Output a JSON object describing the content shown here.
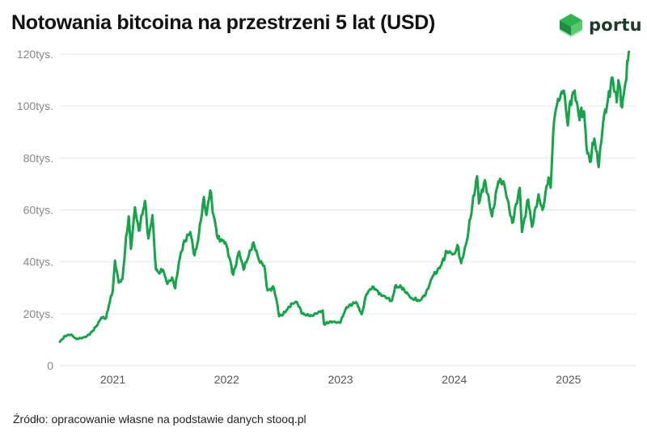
{
  "title": "Notowania bitcoina na przestrzeni 5 lat (USD)",
  "logo": {
    "text": "portu",
    "icon": "portu-logo-icon"
  },
  "source": "Źródło: opracowanie własne na podstawie danych stooq.pl",
  "colors": {
    "line": "#16a34a",
    "grid": "#e6e6e6",
    "brand": "#2fb450"
  },
  "chart_data": {
    "type": "line",
    "title": "Notowania bitcoina na przestrzeni 5 lat (USD)",
    "xlabel": "",
    "ylabel": "",
    "ylim": [
      0,
      120000
    ],
    "xlim": [
      "2020-07-15",
      "2025-07-20"
    ],
    "y_ticks": [
      {
        "value": 0,
        "label": "0"
      },
      {
        "value": 20000,
        "label": "20tys."
      },
      {
        "value": 40000,
        "label": "40tys."
      },
      {
        "value": 60000,
        "label": "60tys."
      },
      {
        "value": 80000,
        "label": "80tys."
      },
      {
        "value": 100000,
        "label": "100tys."
      },
      {
        "value": 120000,
        "label": "120tys."
      }
    ],
    "x_ticks": [
      {
        "value": "2021-01-01",
        "label": "2021"
      },
      {
        "value": "2022-01-01",
        "label": "2022"
      },
      {
        "value": "2023-01-01",
        "label": "2023"
      },
      {
        "value": "2024-01-01",
        "label": "2024"
      },
      {
        "value": "2025-01-01",
        "label": "2025"
      }
    ],
    "grid": "horizontal",
    "series": [
      {
        "color": "#16a34a",
        "points": [
          [
            "2020-07-15",
            9200
          ],
          [
            "2020-08-01",
            11500
          ],
          [
            "2020-08-20",
            12000
          ],
          [
            "2020-09-05",
            10300
          ],
          [
            "2020-09-25",
            10700
          ],
          [
            "2020-10-10",
            11300
          ],
          [
            "2020-10-25",
            13000
          ],
          [
            "2020-11-10",
            15300
          ],
          [
            "2020-11-25",
            18500
          ],
          [
            "2020-12-10",
            18300
          ],
          [
            "2020-12-20",
            23500
          ],
          [
            "2021-01-01",
            29000
          ],
          [
            "2021-01-08",
            40500
          ],
          [
            "2021-01-20",
            32000
          ],
          [
            "2021-02-01",
            33500
          ],
          [
            "2021-02-10",
            46000
          ],
          [
            "2021-02-21",
            57500
          ],
          [
            "2021-02-28",
            45000
          ],
          [
            "2021-03-13",
            61000
          ],
          [
            "2021-03-25",
            52000
          ],
          [
            "2021-04-14",
            63500
          ],
          [
            "2021-04-25",
            49000
          ],
          [
            "2021-05-08",
            58000
          ],
          [
            "2021-05-19",
            37000
          ],
          [
            "2021-05-30",
            35500
          ],
          [
            "2021-06-10",
            37000
          ],
          [
            "2021-06-25",
            31500
          ],
          [
            "2021-07-10",
            34000
          ],
          [
            "2021-07-20",
            29800
          ],
          [
            "2021-08-01",
            40000
          ],
          [
            "2021-08-15",
            47000
          ],
          [
            "2021-09-06",
            51500
          ],
          [
            "2021-09-20",
            42500
          ],
          [
            "2021-10-01",
            48000
          ],
          [
            "2021-10-20",
            65000
          ],
          [
            "2021-10-28",
            58000
          ],
          [
            "2021-11-09",
            67500
          ],
          [
            "2021-11-20",
            58000
          ],
          [
            "2021-12-04",
            49000
          ],
          [
            "2021-12-28",
            47500
          ],
          [
            "2022-01-10",
            41500
          ],
          [
            "2022-01-22",
            35000
          ],
          [
            "2022-02-10",
            44000
          ],
          [
            "2022-02-24",
            37000
          ],
          [
            "2022-03-28",
            47500
          ],
          [
            "2022-04-15",
            40500
          ],
          [
            "2022-05-01",
            38500
          ],
          [
            "2022-05-12",
            29000
          ],
          [
            "2022-06-01",
            30000
          ],
          [
            "2022-06-14",
            22500
          ],
          [
            "2022-06-18",
            19000
          ],
          [
            "2022-07-01",
            19800
          ],
          [
            "2022-07-30",
            24000
          ],
          [
            "2022-08-14",
            24500
          ],
          [
            "2022-09-01",
            20000
          ],
          [
            "2022-09-15",
            19500
          ],
          [
            "2022-10-01",
            19300
          ],
          [
            "2022-11-05",
            21300
          ],
          [
            "2022-11-09",
            16000
          ],
          [
            "2022-12-01",
            17000
          ],
          [
            "2022-12-31",
            16500
          ],
          [
            "2023-01-20",
            22500
          ],
          [
            "2023-02-20",
            24500
          ],
          [
            "2023-03-10",
            19800
          ],
          [
            "2023-03-25",
            27500
          ],
          [
            "2023-04-14",
            30500
          ],
          [
            "2023-05-10",
            27500
          ],
          [
            "2023-06-15",
            25000
          ],
          [
            "2023-06-25",
            30500
          ],
          [
            "2023-07-15",
            30200
          ],
          [
            "2023-08-17",
            26000
          ],
          [
            "2023-09-11",
            25000
          ],
          [
            "2023-10-01",
            27500
          ],
          [
            "2023-10-24",
            34500
          ],
          [
            "2023-11-15",
            37500
          ],
          [
            "2023-12-08",
            44000
          ],
          [
            "2024-01-01",
            43000
          ],
          [
            "2024-01-11",
            46500
          ],
          [
            "2024-01-23",
            39500
          ],
          [
            "2024-02-10",
            48000
          ],
          [
            "2024-02-28",
            62000
          ],
          [
            "2024-03-14",
            73000
          ],
          [
            "2024-03-20",
            62500
          ],
          [
            "2024-04-08",
            71500
          ],
          [
            "2024-05-01",
            57500
          ],
          [
            "2024-05-21",
            71000
          ],
          [
            "2024-06-07",
            71000
          ],
          [
            "2024-07-05",
            55000
          ],
          [
            "2024-07-29",
            68500
          ],
          [
            "2024-08-05",
            51500
          ],
          [
            "2024-08-25",
            64000
          ],
          [
            "2024-09-06",
            53500
          ],
          [
            "2024-09-27",
            66000
          ],
          [
            "2024-10-10",
            60000
          ],
          [
            "2024-10-29",
            72500
          ],
          [
            "2024-11-05",
            68500
          ],
          [
            "2024-11-13",
            89500
          ],
          [
            "2024-11-22",
            99000
          ],
          [
            "2024-12-05",
            103000
          ],
          [
            "2024-12-17",
            106000
          ],
          [
            "2024-12-30",
            92500
          ],
          [
            "2025-01-07",
            102000
          ],
          [
            "2025-01-21",
            106000
          ],
          [
            "2025-02-03",
            96500
          ],
          [
            "2025-02-20",
            98000
          ],
          [
            "2025-02-28",
            84000
          ],
          [
            "2025-03-11",
            78500
          ],
          [
            "2025-03-25",
            87500
          ],
          [
            "2025-04-08",
            76500
          ],
          [
            "2025-04-22",
            93500
          ],
          [
            "2025-05-08",
            103000
          ],
          [
            "2025-05-22",
            111000
          ],
          [
            "2025-06-05",
            101500
          ],
          [
            "2025-06-10",
            110000
          ],
          [
            "2025-06-22",
            99500
          ],
          [
            "2025-07-03",
            109000
          ],
          [
            "2025-07-11",
            117500
          ],
          [
            "2025-07-14",
            121000
          ]
        ]
      }
    ]
  }
}
